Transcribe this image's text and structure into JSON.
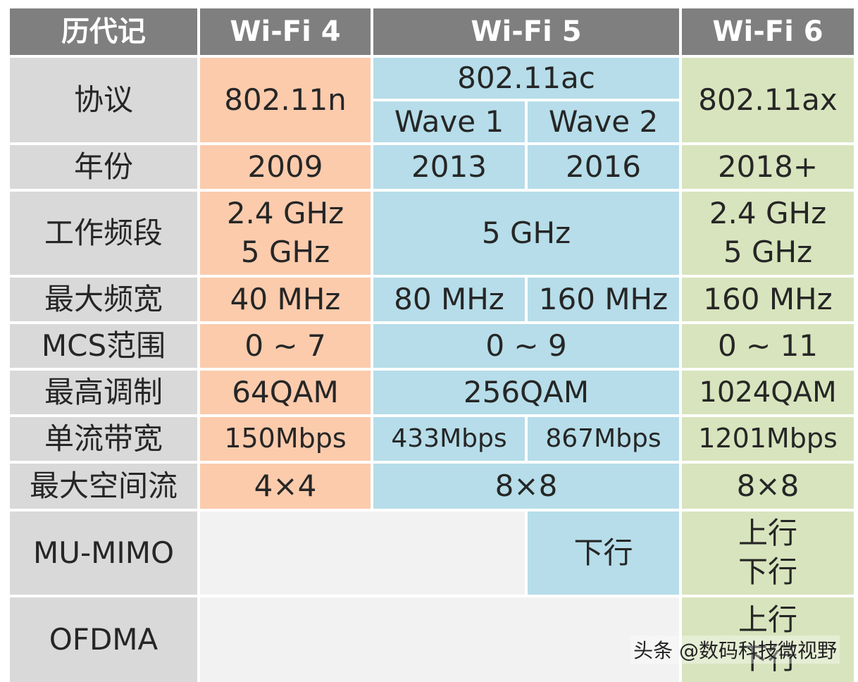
{
  "header": {
    "col0": "历代记",
    "col1": "Wi-Fi 4",
    "col2": "Wi-Fi 5",
    "col3": "Wi-Fi 6"
  },
  "rows": {
    "protocol": {
      "label": "协议",
      "wifi4": "802.11n",
      "wifi5": "802.11ac",
      "wave1": "Wave 1",
      "wave2": "Wave 2",
      "wifi6": "802.11ax"
    },
    "year": {
      "label": "年份",
      "wifi4": "2009",
      "wave1": "2013",
      "wave2": "2016",
      "wifi6": "2018+"
    },
    "band": {
      "label": "工作频段",
      "wifi4_l1": "2.4 GHz",
      "wifi4_l2": "5 GHz",
      "wifi5": "5 GHz",
      "wifi6_l1": "2.4 GHz",
      "wifi6_l2": "5 GHz"
    },
    "bandwidth": {
      "label": "最大频宽",
      "wifi4": "40 MHz",
      "wave1": "80 MHz",
      "wave2": "160 MHz",
      "wifi6": "160 MHz"
    },
    "mcs": {
      "label": "MCS范围",
      "wifi4": "0 ~ 7",
      "wifi5": "0 ~ 9",
      "wifi6": "0 ~ 11"
    },
    "modulation": {
      "label": "最高调制",
      "wifi4": "64QAM",
      "wifi5": "256QAM",
      "wifi6": "1024QAM"
    },
    "single_stream": {
      "label": "单流带宽",
      "wifi4": "150Mbps",
      "wave1": "433Mbps",
      "wave2": "867Mbps",
      "wifi6": "1201Mbps"
    },
    "spatial_streams": {
      "label": "最大空间流",
      "wifi4": "4×4",
      "wifi5": "8×8",
      "wifi6": "8×8"
    },
    "mumimo": {
      "label": "MU-MIMO",
      "wave2": "下行",
      "wifi6_l1": "上行",
      "wifi6_l2": "下行"
    },
    "ofdma": {
      "label": "OFDMA",
      "wifi6_l1": "上行",
      "wifi6_l2": "下行"
    }
  },
  "watermark": "头条 @数码科技微视野",
  "colors": {
    "header": "#7f7f7f",
    "label": "#d9d9d9",
    "wifi4": "#fbcbac",
    "wifi5": "#b6dde9",
    "wifi6": "#d8e4bd"
  }
}
